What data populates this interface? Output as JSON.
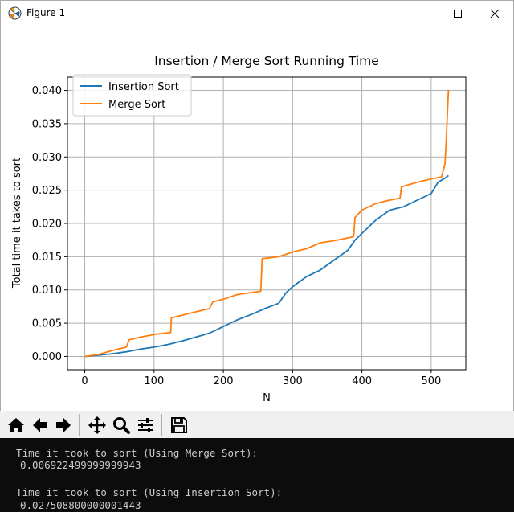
{
  "window": {
    "title": "Figure 1"
  },
  "chart_data": {
    "type": "line",
    "title": "Insertion / Merge Sort Running Time",
    "xlabel": "N",
    "ylabel": "Total time it takes to sort",
    "xlim": [
      -25,
      550
    ],
    "ylim": [
      -0.002,
      0.042
    ],
    "xticks": [
      0,
      100,
      200,
      300,
      400,
      500
    ],
    "yticks": [
      0.0,
      0.005,
      0.01,
      0.015,
      0.02,
      0.025,
      0.03,
      0.035,
      0.04
    ],
    "xtick_labels": [
      "0",
      "100",
      "200",
      "300",
      "400",
      "500"
    ],
    "ytick_labels": [
      "0.000",
      "0.005",
      "0.010",
      "0.015",
      "0.020",
      "0.025",
      "0.030",
      "0.035",
      "0.040"
    ],
    "grid": true,
    "legend_position": "upper-left",
    "series": [
      {
        "name": "Insertion Sort",
        "color": "#1f77b4",
        "x": [
          0,
          20,
          40,
          60,
          80,
          100,
          120,
          140,
          160,
          180,
          200,
          220,
          240,
          260,
          280,
          290,
          300,
          320,
          340,
          360,
          380,
          390,
          400,
          420,
          440,
          460,
          480,
          500,
          510,
          520,
          525
        ],
        "y": [
          0.0,
          0.0002,
          0.0004,
          0.0007,
          0.0011,
          0.0014,
          0.0018,
          0.0023,
          0.0029,
          0.0035,
          0.0045,
          0.0055,
          0.0063,
          0.0072,
          0.008,
          0.0095,
          0.0105,
          0.012,
          0.013,
          0.0145,
          0.016,
          0.0175,
          0.0185,
          0.0205,
          0.022,
          0.0225,
          0.0235,
          0.0245,
          0.0262,
          0.0268,
          0.0272
        ]
      },
      {
        "name": "Merge Sort",
        "color": "#ff7f0e",
        "x": [
          0,
          20,
          40,
          60,
          64,
          80,
          100,
          124,
          125,
          140,
          160,
          180,
          185,
          200,
          220,
          254,
          256,
          280,
          300,
          320,
          340,
          360,
          388,
          390,
          400,
          420,
          440,
          455,
          457,
          480,
          500,
          515,
          520,
          522,
          525
        ],
        "y": [
          0.0,
          0.0003,
          0.0009,
          0.0014,
          0.0025,
          0.0029,
          0.0033,
          0.0036,
          0.0058,
          0.0062,
          0.0067,
          0.0072,
          0.0082,
          0.0086,
          0.0093,
          0.0098,
          0.0147,
          0.015,
          0.0157,
          0.0162,
          0.0171,
          0.0174,
          0.018,
          0.0209,
          0.022,
          0.023,
          0.0235,
          0.0238,
          0.0255,
          0.0262,
          0.0267,
          0.027,
          0.029,
          0.033,
          0.0401
        ]
      }
    ]
  },
  "toolbar": {
    "buttons": [
      "home-icon",
      "back-icon",
      "forward-icon",
      "pan-icon",
      "zoom-icon",
      "configure-icon",
      "save-icon"
    ]
  },
  "console": {
    "line1": "  Time it took to sort (Using Merge Sort):",
    "line2": "0.006922499999999943",
    "line3": "  Time it took to sort (Using Insertion Sort):",
    "line4": "0.027508800000001443"
  }
}
